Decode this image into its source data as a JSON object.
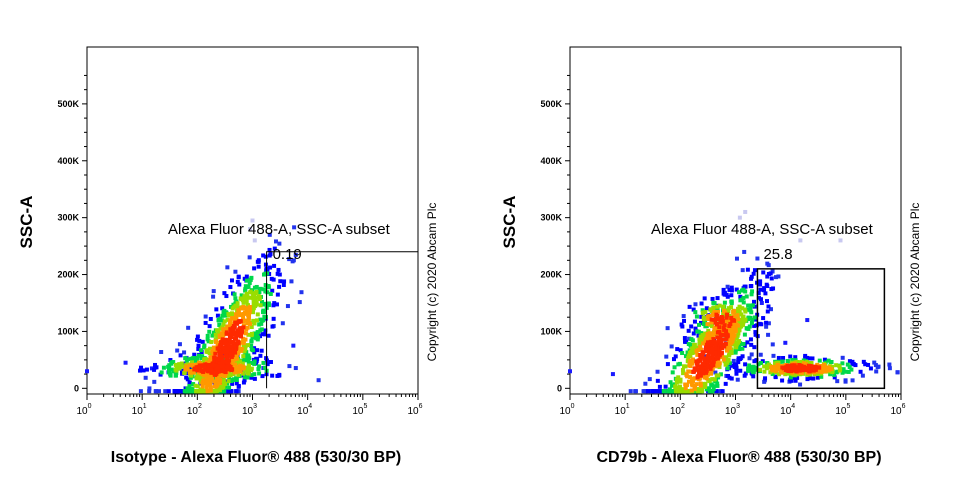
{
  "chart_data": [
    {
      "type": "scatter",
      "xlabel": "Isotype - Alexa Fluor® 488 (530/30 BP)",
      "ylabel": "SSC-A",
      "x_scale": "log",
      "xlim": [
        1,
        1000000
      ],
      "ylim": [
        -10000,
        600000
      ],
      "y_ticks": [
        {
          "v": 0,
          "label": "0"
        },
        {
          "v": 100000,
          "label": "100K"
        },
        {
          "v": 200000,
          "label": "200K"
        },
        {
          "v": 300000,
          "label": "300K"
        },
        {
          "v": 400000,
          "label": "400K"
        },
        {
          "v": 500000,
          "label": "500K"
        }
      ],
      "x_ticks": [
        {
          "v": 1,
          "base": "10",
          "exp": "0"
        },
        {
          "v": 10,
          "base": "10",
          "exp": "1"
        },
        {
          "v": 100,
          "base": "10",
          "exp": "2"
        },
        {
          "v": 1000,
          "base": "10",
          "exp": "3"
        },
        {
          "v": 10000,
          "base": "10",
          "exp": "4"
        },
        {
          "v": 100000,
          "base": "10",
          "exp": "5"
        },
        {
          "v": 1000000,
          "base": "10",
          "exp": "6"
        }
      ],
      "gate": {
        "name": "Alexa Fluor 488-A, SSC-A subset",
        "value": "0.19",
        "x_min": 1800,
        "x_max": 1000000,
        "y_max": 240000
      },
      "copyright": "Copyright (c) 2020 Abcam Plc",
      "populations": [
        {
          "cx": 350,
          "cy": 70000,
          "sx": 0.28,
          "sy": 45000,
          "n": 900,
          "slope": 60000
        },
        {
          "cx": 200,
          "cy": 35000,
          "sx": 0.35,
          "sy": 12000,
          "n": 300,
          "slope": 0
        }
      ],
      "outliers": [
        [
          1,
          30000
        ],
        [
          5,
          45000
        ],
        [
          15,
          35000
        ],
        [
          30,
          28000
        ],
        [
          55,
          42000
        ],
        [
          5500,
          75000
        ],
        [
          1100,
          260000
        ],
        [
          900,
          280000
        ],
        [
          1000,
          295000
        ]
      ]
    },
    {
      "type": "scatter",
      "xlabel": "CD79b - Alexa Fluor® 488 (530/30 BP)",
      "ylabel": "SSC-A",
      "x_scale": "log",
      "xlim": [
        1,
        1000000
      ],
      "ylim": [
        -10000,
        600000
      ],
      "y_ticks": [
        {
          "v": 0,
          "label": "0"
        },
        {
          "v": 100000,
          "label": "100K"
        },
        {
          "v": 200000,
          "label": "200K"
        },
        {
          "v": 300000,
          "label": "300K"
        },
        {
          "v": 400000,
          "label": "400K"
        },
        {
          "v": 500000,
          "label": "500K"
        }
      ],
      "x_ticks": [
        {
          "v": 1,
          "base": "10",
          "exp": "0"
        },
        {
          "v": 10,
          "base": "10",
          "exp": "1"
        },
        {
          "v": 100,
          "base": "10",
          "exp": "2"
        },
        {
          "v": 1000,
          "base": "10",
          "exp": "3"
        },
        {
          "v": 10000,
          "base": "10",
          "exp": "4"
        },
        {
          "v": 100000,
          "base": "10",
          "exp": "5"
        },
        {
          "v": 1000000,
          "base": "10",
          "exp": "6"
        }
      ],
      "gate": {
        "name": "Alexa Fluor 488-A, SSC-A subset",
        "value": "25.8",
        "x_min": 2500,
        "x_max": 500000,
        "y_max": 210000
      },
      "copyright": "Copyright (c) 2020 Abcam Plc",
      "populations": [
        {
          "cx": 350,
          "cy": 60000,
          "sx": 0.3,
          "sy": 40000,
          "n": 750,
          "slope": 50000
        },
        {
          "cx": 15000,
          "cy": 35000,
          "sx": 0.35,
          "sy": 9000,
          "n": 350,
          "slope": 0
        },
        {
          "cx": 600,
          "cy": 120000,
          "sx": 0.2,
          "sy": 20000,
          "n": 150,
          "slope": 0
        }
      ],
      "outliers": [
        [
          1,
          30000
        ],
        [
          6,
          25000
        ],
        [
          1500,
          310000
        ],
        [
          1200,
          300000
        ],
        [
          3000,
          150000
        ],
        [
          8000,
          80000
        ],
        [
          20000,
          120000
        ],
        [
          80000,
          260000
        ],
        [
          15000,
          260000
        ]
      ]
    }
  ]
}
